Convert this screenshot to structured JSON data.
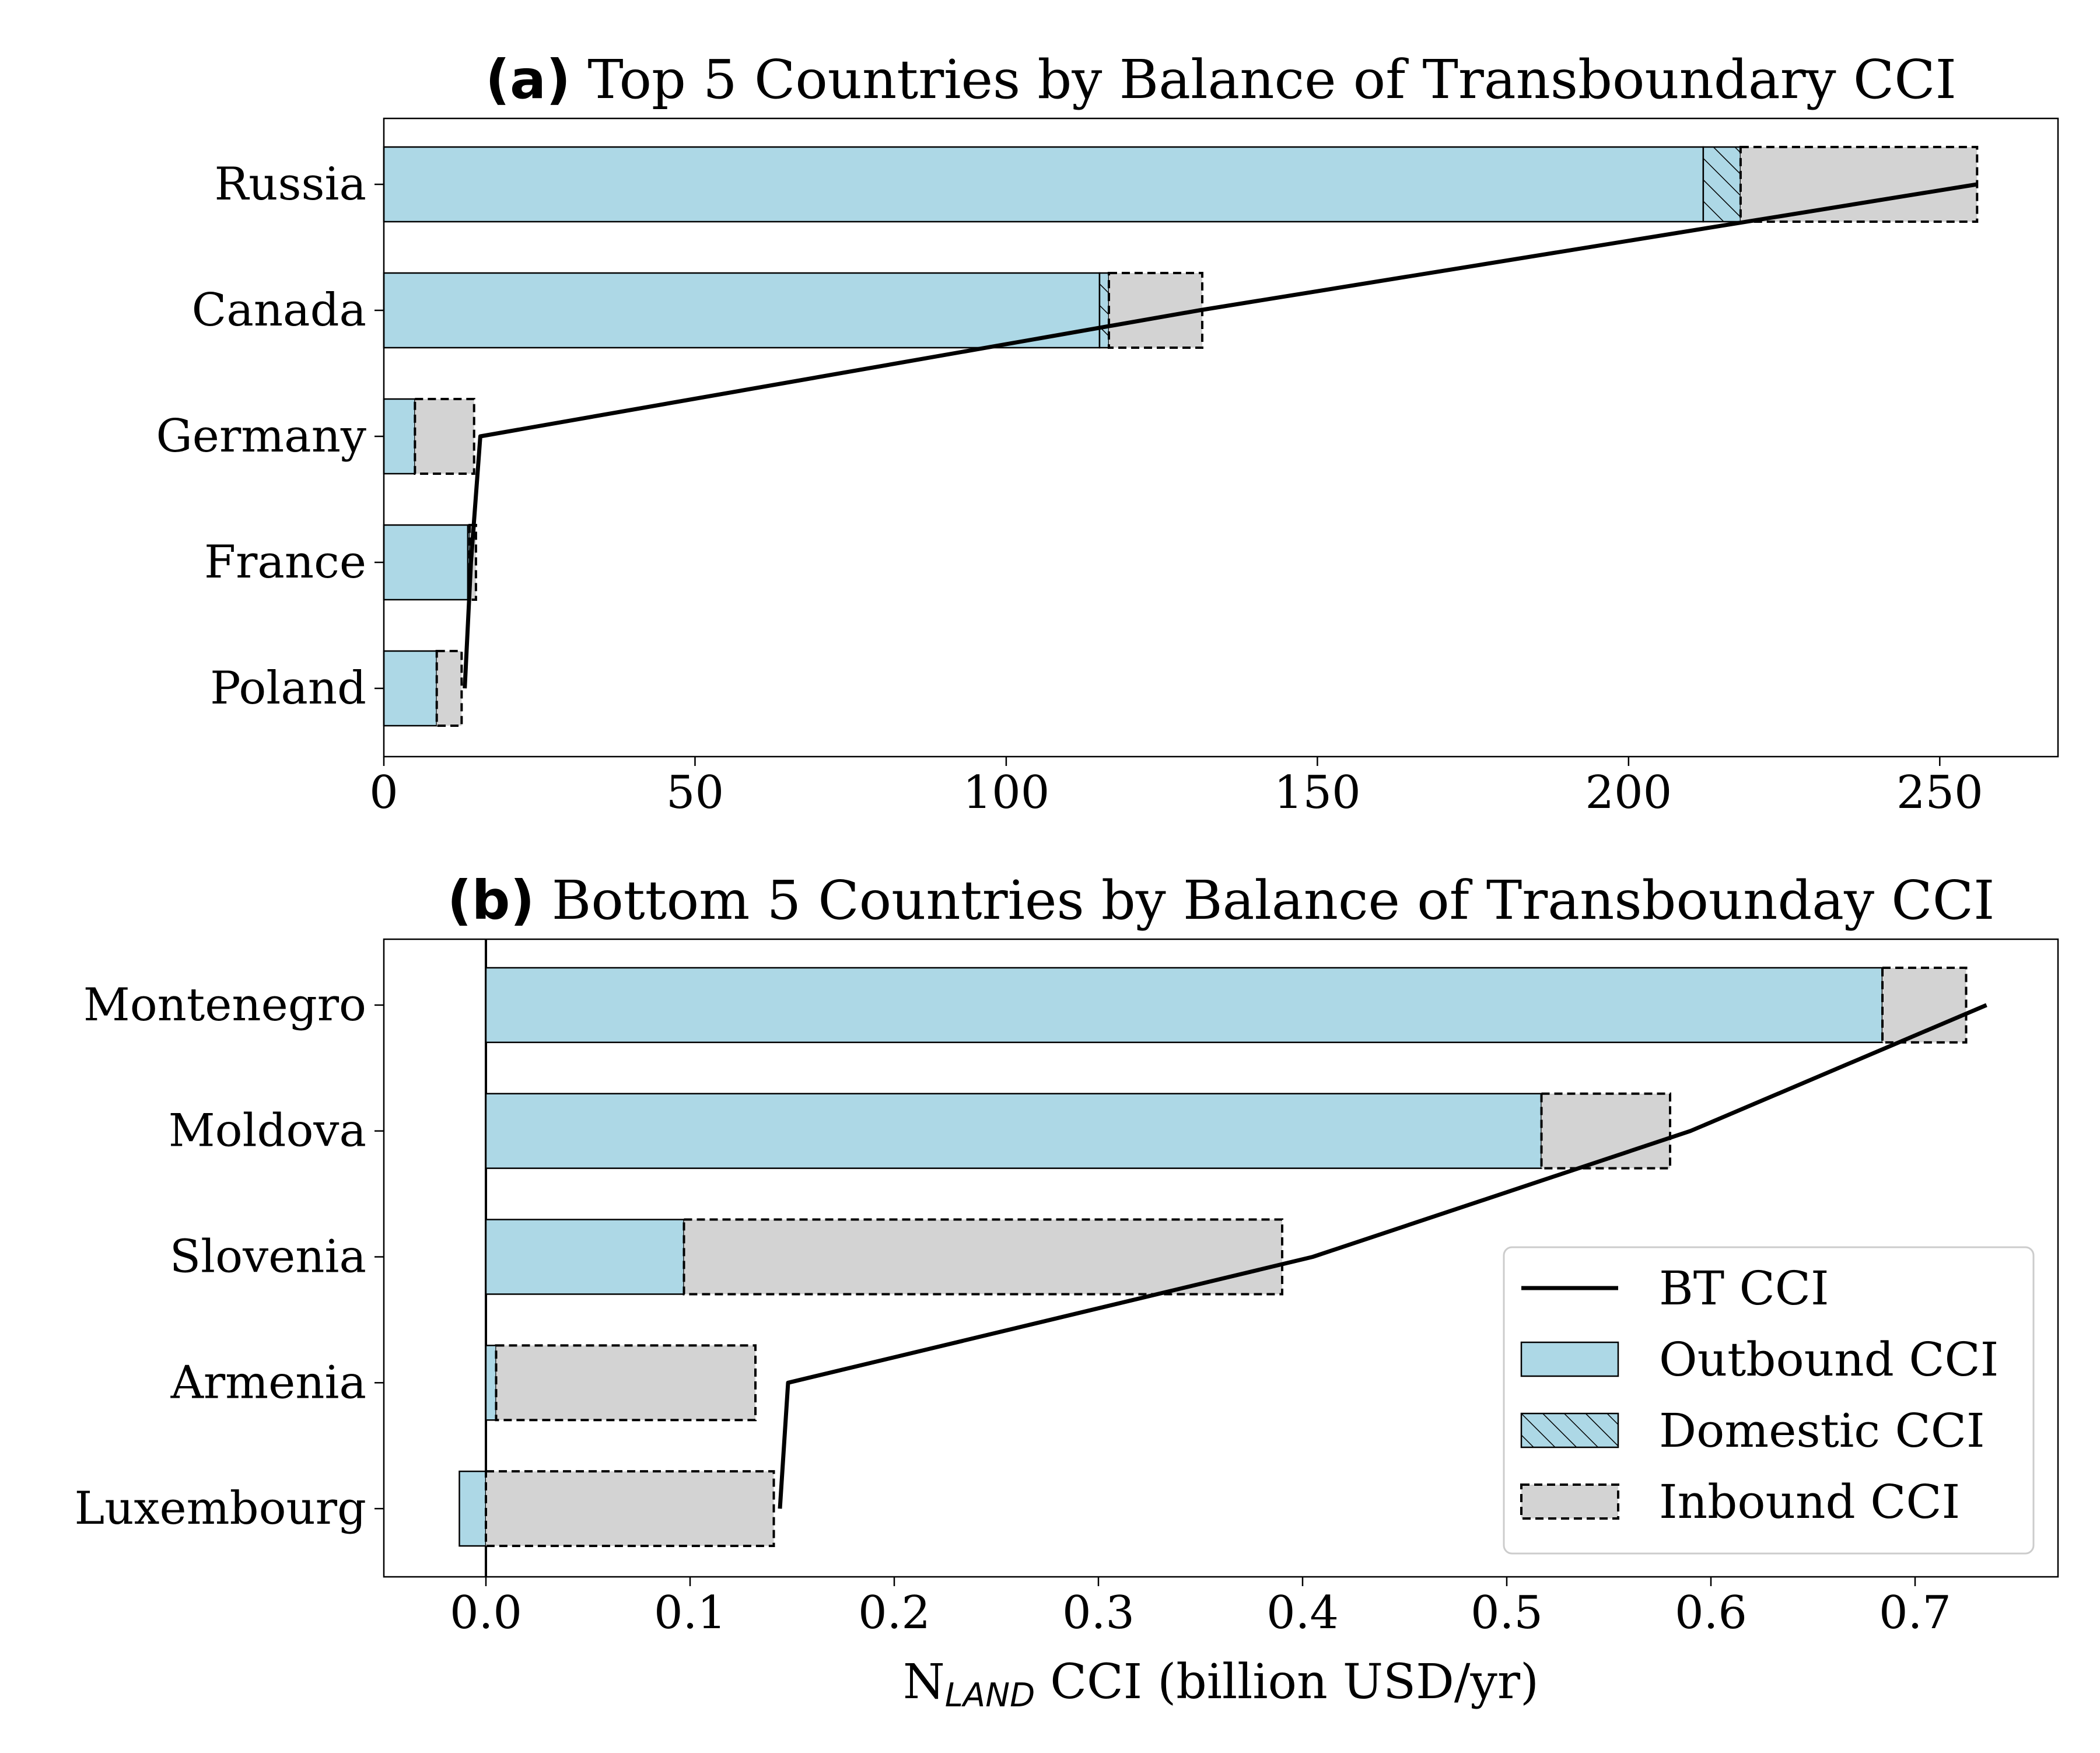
{
  "chart_data": [
    {
      "type": "bar",
      "orientation": "horizontal",
      "stacked": true,
      "panel_label": "(a)",
      "title": "Top 5 Countries by Balance of Transboundary CCI",
      "categories": [
        "Russia",
        "Canada",
        "Germany",
        "France",
        "Poland"
      ],
      "series": [
        {
          "name": "Outbound CCI",
          "values": [
            212,
            115,
            5,
            13.5,
            8.5
          ],
          "color": "#add8e6"
        },
        {
          "name": "Domestic CCI",
          "values": [
            6,
            1.5,
            0,
            0.3,
            0
          ],
          "color": "#add8e6",
          "hatch": true
        },
        {
          "name": "Inbound CCI",
          "values": [
            38,
            15,
            9.5,
            1,
            4
          ],
          "color": "#d3d3d3"
        }
      ],
      "bt_line": {
        "name": "BT CCI",
        "values": [
          256,
          131,
          15.5,
          14,
          13
        ]
      },
      "xlim": [
        0,
        269
      ],
      "xticks": [
        "0",
        "50",
        "100",
        "150",
        "200",
        "250"
      ],
      "xtick_values": [
        0,
        50,
        100,
        150,
        200,
        250
      ],
      "xlabel": "",
      "ylabel": "",
      "grid": false
    },
    {
      "type": "bar",
      "orientation": "horizontal",
      "stacked": true,
      "panel_label": "(b)",
      "title": "Bottom 5 Countries by Balance of Transbounday CCI",
      "categories": [
        "Montenegro",
        "Moldova",
        "Slovenia",
        "Armenia",
        "Luxembourg"
      ],
      "series": [
        {
          "name": "Outbound CCI",
          "values": [
            0.684,
            0.517,
            0.097,
            0.005,
            -0.013
          ],
          "color": "#add8e6"
        },
        {
          "name": "Domestic CCI",
          "values": [
            0,
            0,
            0,
            0,
            0
          ],
          "color": "#add8e6",
          "hatch": true
        },
        {
          "name": "Inbound CCI",
          "values": [
            0.041,
            0.063,
            0.293,
            0.127,
            0.141
          ],
          "color": "#d3d3d3"
        }
      ],
      "bt_line": {
        "name": "BT CCI",
        "values": [
          0.735,
          0.59,
          0.405,
          0.148,
          0.144
        ]
      },
      "xlim": [
        -0.05,
        0.77
      ],
      "xticks": [
        "0.0",
        "0.1",
        "0.2",
        "0.3",
        "0.4",
        "0.5",
        "0.6",
        "0.7"
      ],
      "xtick_values": [
        0,
        0.1,
        0.2,
        0.3,
        0.4,
        0.5,
        0.6,
        0.7
      ],
      "xlabel_main": "N",
      "xlabel_sub": "LAND",
      "xlabel_rest": " CCI (billion USD/yr)",
      "ylabel": "",
      "grid": false,
      "legend": {
        "placement": "lower-right",
        "entries": [
          {
            "label": "BT CCI",
            "kind": "line"
          },
          {
            "label": "Outbound CCI",
            "kind": "solid"
          },
          {
            "label": "Domestic CCI",
            "kind": "hatch"
          },
          {
            "label": "Inbound CCI",
            "kind": "dashed"
          }
        ]
      }
    }
  ]
}
